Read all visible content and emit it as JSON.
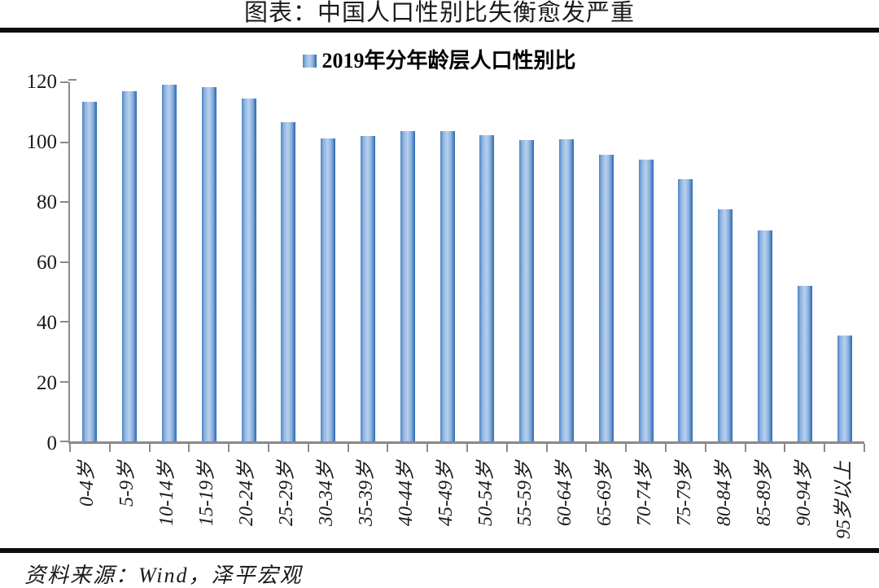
{
  "title": "图表：中国人口性别比失衡愈发严重",
  "legend": {
    "label": "2019年分年龄层人口性别比"
  },
  "source": "资料来源：Wind，泽平宏观",
  "colors": {
    "bar_edge": "#2a68b2",
    "bar_mid": "#b7d0ee",
    "axis": "#8a8a8a",
    "rule": "#0d0d0d",
    "text": "#1a1a1a"
  },
  "chart_data": {
    "type": "bar",
    "title": "2019年分年龄层人口性别比",
    "categories": [
      "0-4岁",
      "5-9岁",
      "10-14岁",
      "15-19岁",
      "20-24岁",
      "25-29岁",
      "30-34岁",
      "35-39岁",
      "40-44岁",
      "45-49岁",
      "50-54岁",
      "55-59岁",
      "60-64岁",
      "65-69岁",
      "70-74岁",
      "75-79岁",
      "80-84岁",
      "85-89岁",
      "90-94岁",
      "95岁以上"
    ],
    "values": [
      113.6,
      116.9,
      119.1,
      118.4,
      114.6,
      106.7,
      101.3,
      102.1,
      103.7,
      103.6,
      102.2,
      100.8,
      100.9,
      95.9,
      94.1,
      87.7,
      77.5,
      70.5,
      51.9,
      35.3
    ],
    "xlabel": "",
    "ylabel": "",
    "ylim": [
      0,
      120
    ],
    "yticks": [
      0,
      20,
      40,
      60,
      80,
      100,
      120
    ],
    "grid": false,
    "legend_position": "top-center"
  }
}
